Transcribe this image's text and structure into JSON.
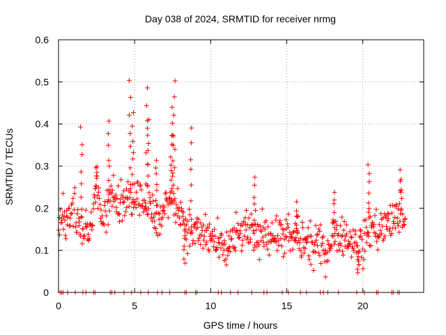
{
  "chart_data": {
    "type": "scatter",
    "title": "Day 038 of 2024, SRMTID for receiver nrmg",
    "xlabel": "GPS time / hours",
    "ylabel": "SRMTID / TECUs",
    "xlim": [
      0,
      24
    ],
    "ylim": [
      0,
      0.6
    ],
    "xticks": [
      "0",
      "5",
      "10",
      "15",
      "20"
    ],
    "xtick_values": [
      0,
      5,
      10,
      15,
      20
    ],
    "yticks": [
      "0",
      "0.1",
      "0.2",
      "0.3",
      "0.4",
      "0.5",
      "0.6"
    ],
    "ytick_values": [
      0,
      0.1,
      0.2,
      0.3,
      0.4,
      0.5,
      0.6
    ],
    "grid": true,
    "marker": "+",
    "series": [
      {
        "name": "SRMTID",
        "color": "#ff0000",
        "profile": [
          [
            0.0,
            0.16
          ],
          [
            0.5,
            0.17
          ],
          [
            1.0,
            0.18
          ],
          [
            1.5,
            0.16
          ],
          [
            2.0,
            0.15
          ],
          [
            2.5,
            0.24
          ],
          [
            3.0,
            0.17
          ],
          [
            3.5,
            0.24
          ],
          [
            4.0,
            0.21
          ],
          [
            4.5,
            0.22
          ],
          [
            5.0,
            0.23
          ],
          [
            5.5,
            0.22
          ],
          [
            6.0,
            0.23
          ],
          [
            6.5,
            0.17
          ],
          [
            7.0,
            0.21
          ],
          [
            7.5,
            0.22
          ],
          [
            8.0,
            0.2
          ],
          [
            8.5,
            0.15
          ],
          [
            9.0,
            0.14
          ],
          [
            9.5,
            0.14
          ],
          [
            10.0,
            0.13
          ],
          [
            10.5,
            0.11
          ],
          [
            11.0,
            0.1
          ],
          [
            11.5,
            0.12
          ],
          [
            12.0,
            0.14
          ],
          [
            12.5,
            0.15
          ],
          [
            13.0,
            0.12
          ],
          [
            13.5,
            0.15
          ],
          [
            14.0,
            0.14
          ],
          [
            14.5,
            0.13
          ],
          [
            15.0,
            0.13
          ],
          [
            15.5,
            0.13
          ],
          [
            16.0,
            0.12
          ],
          [
            16.5,
            0.11
          ],
          [
            17.0,
            0.11
          ],
          [
            17.5,
            0.1
          ],
          [
            18.0,
            0.13
          ],
          [
            18.5,
            0.15
          ],
          [
            19.0,
            0.12
          ],
          [
            19.5,
            0.12
          ],
          [
            20.0,
            0.11
          ],
          [
            20.5,
            0.16
          ],
          [
            21.0,
            0.15
          ],
          [
            21.5,
            0.16
          ],
          [
            22.0,
            0.17
          ],
          [
            22.5,
            0.19
          ],
          [
            22.8,
            0.15
          ]
        ],
        "spikes": [
          [
            1.5,
            0.39
          ],
          [
            3.3,
            0.4
          ],
          [
            4.7,
            0.5
          ],
          [
            4.9,
            0.42
          ],
          [
            5.8,
            0.48
          ],
          [
            5.9,
            0.41
          ],
          [
            7.6,
            0.5
          ],
          [
            7.5,
            0.44
          ],
          [
            7.4,
            0.37
          ],
          [
            8.7,
            0.39
          ],
          [
            2.5,
            0.3
          ],
          [
            6.4,
            0.32
          ],
          [
            12.9,
            0.27
          ],
          [
            15.7,
            0.21
          ],
          [
            18.1,
            0.24
          ],
          [
            20.4,
            0.3
          ],
          [
            22.5,
            0.29
          ],
          [
            19.7,
            0.04
          ],
          [
            8.3,
            0.07
          ]
        ],
        "zero_points": [
          0.1,
          0.2,
          0.3,
          0.6,
          1.1,
          1.6,
          1.8,
          2.3,
          2.4,
          3.4,
          3.5,
          3.7,
          4.3,
          4.8,
          5.4,
          5.9,
          6.5,
          6.8,
          7.3,
          8.3,
          8.4,
          9.0,
          9.1,
          10.5,
          10.7,
          11.3,
          11.8,
          12.7,
          13.5,
          13.7,
          14.7,
          15.1,
          15.9,
          16.3,
          17.2,
          17.4,
          17.7,
          18.4,
          19.6,
          20.1,
          20.9,
          21.0,
          21.9,
          22.0,
          22.3,
          22.4
        ],
        "points_per_hour": 30,
        "scatter": 0.035
      }
    ]
  }
}
